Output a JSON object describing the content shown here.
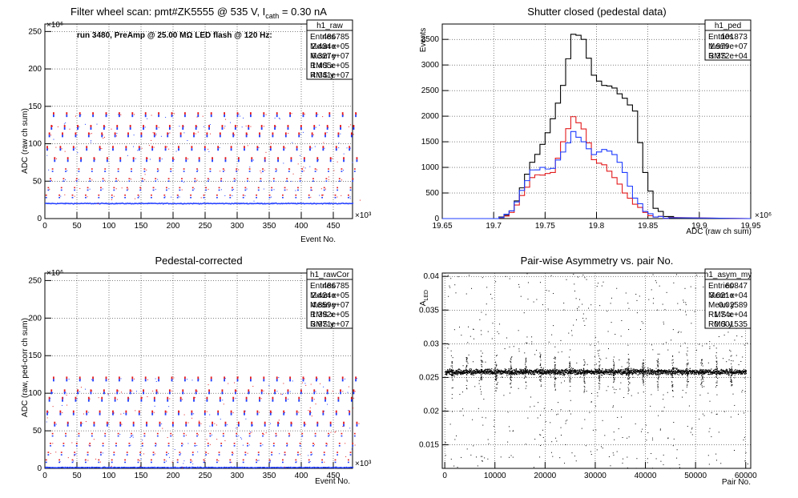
{
  "chart_data": [
    {
      "type": "scatter",
      "title": "Filter wheel scan: pmt#ZK5555 @   535 V, I",
      "title_sub": "cath",
      "title_tail": " = 0.30 nA",
      "subtitle": "run 3480, PreAmp @ 25.00 MΩ LED flash @  120 Hz:",
      "xlabel": "Event No.",
      "ylabel": "ADC (raw ch sum)",
      "x_exponent": "×10³",
      "y_exponent": "×10⁶",
      "xlim": [
        0,
        480
      ],
      "ylim": [
        0,
        260
      ],
      "xticks": [
        "0",
        "50",
        "100",
        "150",
        "200",
        "250",
        "300",
        "350",
        "400",
        "450"
      ],
      "yticks": [
        "0",
        "50",
        "100",
        "150",
        "200",
        "250"
      ],
      "grid": true,
      "period": 20.5,
      "levels": [
        20,
        30,
        40,
        52,
        65,
        80,
        95,
        113,
        123,
        140
      ],
      "series_colors": {
        "red": "#e31a1c",
        "blue": "#1f3cff"
      },
      "stats": {
        "name": "h1_raw",
        "rows": [
          {
            "label": "Entries",
            "value": "486785"
          },
          {
            "label": "Mean x",
            "value": "2.434e+05"
          },
          {
            "label": "Mean y",
            "value": "6.327e+07"
          },
          {
            "label": "RMS x",
            "value": "1.405e+05"
          },
          {
            "label": "RMS y",
            "value": "4.041e+07"
          }
        ]
      }
    },
    {
      "type": "line",
      "title": "Shutter closed (pedestal data)",
      "xlabel": "ADC (raw ch sum)",
      "ylabel": "Events",
      "x_exponent": "×10⁶",
      "xlim": [
        19.65,
        19.95
      ],
      "ylim": [
        0,
        3800
      ],
      "xticks": [
        "19.65",
        "19.7",
        "19.75",
        "19.8",
        "19.85",
        "19.9",
        "19.95"
      ],
      "yticks": [
        "0",
        "500",
        "1000",
        "1500",
        "2000",
        "2500",
        "3000",
        "3500"
      ],
      "grid": true,
      "series": [
        {
          "color": "#000000",
          "x": [
            19.71,
            19.72,
            19.73,
            19.74,
            19.75,
            19.76,
            19.77,
            19.78,
            19.79,
            19.8,
            19.81,
            19.82,
            19.83,
            19.84,
            19.85,
            19.86,
            19.87,
            19.88
          ],
          "values": [
            30,
            150,
            600,
            1100,
            1450,
            1950,
            2600,
            3600,
            3500,
            2800,
            2600,
            2550,
            2350,
            2100,
            900,
            200,
            40,
            5
          ]
        },
        {
          "color": "#e31a1c",
          "x": [
            19.71,
            19.72,
            19.73,
            19.74,
            19.75,
            19.76,
            19.77,
            19.78,
            19.79,
            19.8,
            19.81,
            19.82,
            19.83,
            19.84,
            19.85,
            19.86,
            19.87
          ],
          "values": [
            20,
            120,
            450,
            800,
            850,
            900,
            1500,
            1990,
            1750,
            1150,
            1050,
            800,
            500,
            280,
            120,
            30,
            5
          ]
        },
        {
          "color": "#1f3cff",
          "x": [
            19.71,
            19.72,
            19.73,
            19.74,
            19.75,
            19.76,
            19.77,
            19.78,
            19.79,
            19.8,
            19.81,
            19.82,
            19.83,
            19.84,
            19.85,
            19.86,
            19.87
          ],
          "values": [
            20,
            150,
            550,
            950,
            1000,
            980,
            1300,
            1700,
            1500,
            1250,
            1350,
            1250,
            900,
            400,
            140,
            30,
            5
          ]
        }
      ],
      "stats": {
        "name": "h1_ped",
        "rows": [
          {
            "label": "Entries",
            "value": "101873"
          },
          {
            "label": "Mean",
            "value": "1.979e+07"
          },
          {
            "label": "RMS",
            "value": "3.372e+04"
          }
        ]
      }
    },
    {
      "type": "scatter",
      "title": "Pedestal-corrected",
      "xlabel": "Event No.",
      "ylabel": "ADC (raw, ped-corr ch sum)",
      "x_exponent": "×10³",
      "y_exponent": "×10⁶",
      "xlim": [
        0,
        480
      ],
      "ylim": [
        0,
        260
      ],
      "xticks": [
        "0",
        "50",
        "100",
        "150",
        "200",
        "250",
        "300",
        "350",
        "400",
        "450"
      ],
      "yticks": [
        "0",
        "50",
        "100",
        "150",
        "200",
        "250"
      ],
      "grid": true,
      "period": 20.5,
      "levels": [
        1,
        10,
        20,
        32,
        45,
        60,
        75,
        93,
        103,
        120
      ],
      "series_colors": {
        "red": "#e31a1c",
        "blue": "#1f3cff"
      },
      "stats": {
        "name": "h1_rawCor",
        "rows": [
          {
            "label": "Entries",
            "value": "486785"
          },
          {
            "label": "Mean x",
            "value": "2.424e+05"
          },
          {
            "label": "Mean y",
            "value": "4.859e+07"
          },
          {
            "label": "RMS x",
            "value": "1.392e+05"
          },
          {
            "label": "RMS y",
            "value": "3.971e+07"
          }
        ]
      }
    },
    {
      "type": "scatter",
      "title": "Pair-wise Asymmetry vs. pair No.",
      "xlabel": "Pair No.",
      "ylabel": "A",
      "ylabel_sub": "LED",
      "xlim": [
        -500,
        61000
      ],
      "ylim": [
        0.0115,
        0.0405
      ],
      "xticks": [
        "0",
        "10000",
        "20000",
        "30000",
        "40000",
        "50000",
        "60000"
      ],
      "yticks": [
        "0.015",
        "0.02",
        "0.025",
        "0.03",
        "0.035",
        "0.04"
      ],
      "grid": true,
      "band_center": 0.02589,
      "spike_period": 2930,
      "stats": {
        "name": "h1_asym_my",
        "rows": [
          {
            "label": "Entries",
            "value": "60847"
          },
          {
            "label": "Mean x",
            "value": "3.021e+04"
          },
          {
            "label": "Mean y",
            "value": "0.02589"
          },
          {
            "label": "RMS x",
            "value": "1.74e+04"
          },
          {
            "label": "RMS y",
            "value": "0.001535"
          }
        ]
      }
    }
  ]
}
